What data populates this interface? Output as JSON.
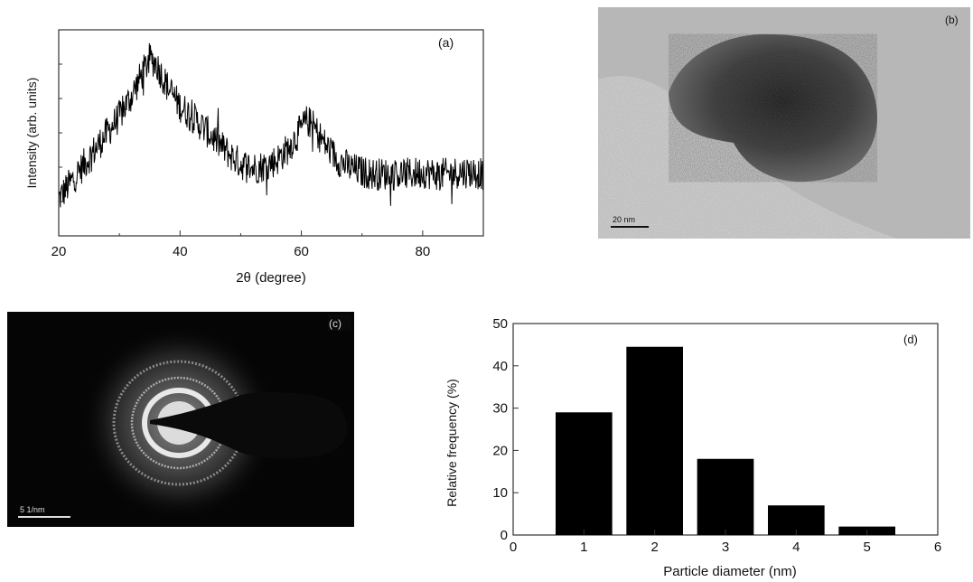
{
  "chart_data": [
    {
      "panel": "(a)",
      "type": "line",
      "xlabel": "2θ (degree)",
      "ylabel": "Intensity (arb. units)",
      "xlim": [
        20,
        90
      ],
      "x_ticks": [
        "20",
        "40",
        "60",
        "80"
      ],
      "y_ticks_labeled": false,
      "grid": false,
      "series": [
        {
          "x": [
            20,
            22,
            24,
            26,
            28,
            30,
            32,
            34,
            35,
            36,
            38,
            40,
            42,
            44,
            46,
            48,
            50,
            52,
            54,
            56,
            58,
            60,
            61,
            62,
            64,
            66,
            68,
            70,
            72,
            74,
            76,
            78,
            80,
            82,
            84,
            86,
            88,
            90
          ],
          "y": [
            0.18,
            0.26,
            0.34,
            0.42,
            0.5,
            0.58,
            0.68,
            0.8,
            0.86,
            0.84,
            0.72,
            0.63,
            0.58,
            0.52,
            0.46,
            0.4,
            0.35,
            0.33,
            0.34,
            0.37,
            0.43,
            0.52,
            0.56,
            0.53,
            0.44,
            0.37,
            0.33,
            0.31,
            0.3,
            0.3,
            0.3,
            0.3,
            0.31,
            0.3,
            0.3,
            0.31,
            0.31,
            0.3
          ]
        }
      ]
    },
    {
      "panel": "(d)",
      "type": "bar",
      "xlabel": "Particle diameter (nm)",
      "ylabel": "Relative frequency (%)",
      "xlim": [
        0,
        6
      ],
      "ylim": [
        0,
        50
      ],
      "x_ticks": [
        "0",
        "1",
        "2",
        "3",
        "4",
        "5",
        "6"
      ],
      "y_ticks": [
        "0",
        "10",
        "20",
        "30",
        "40",
        "50"
      ],
      "categories": [
        "1",
        "2",
        "3",
        "4",
        "5"
      ],
      "values": [
        29,
        44.5,
        18,
        7,
        2
      ],
      "grid": false
    }
  ],
  "images": {
    "b": {
      "panel_label": "(b)",
      "scale_bar": "20 nm"
    },
    "c": {
      "panel_label": "(c)",
      "scale_bar": "5 1/nm"
    }
  }
}
